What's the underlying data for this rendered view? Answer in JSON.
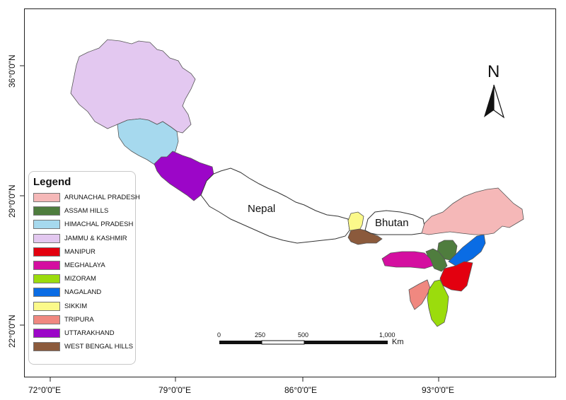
{
  "map": {
    "lat_labels": [
      "36°0'0\"N",
      "29°0'0\"N",
      "22°0'0\"N"
    ],
    "lon_labels": [
      "72°0'0\"E",
      "79°0'0\"E",
      "86°0'0\"E",
      "93°0'0\"E"
    ],
    "countries": [
      "Nepal",
      "Bhutan"
    ],
    "north_label": "N",
    "scale": {
      "ticks": [
        "0",
        "250",
        "500",
        "1,000"
      ],
      "unit": "Km"
    }
  },
  "legend": {
    "title": "Legend",
    "items": [
      {
        "label": "ARUNACHAL PRADESH",
        "color": "#f5b8b8"
      },
      {
        "label": "ASSAM HILLS",
        "color": "#4f7d3e"
      },
      {
        "label": "HIMACHAL PRADESH",
        "color": "#a6d9ee"
      },
      {
        "label": "JAMMU & KASHMIR",
        "color": "#e3c8f0"
      },
      {
        "label": "MANIPUR",
        "color": "#e3000f"
      },
      {
        "label": "MEGHALAYA",
        "color": "#d40fa0"
      },
      {
        "label": "MIZORAM",
        "color": "#9bdc0c"
      },
      {
        "label": "NAGALAND",
        "color": "#0a6ce4"
      },
      {
        "label": "SIKKIM",
        "color": "#fbf98a"
      },
      {
        "label": "TRIPURA",
        "color": "#f08880"
      },
      {
        "label": "UTTARAKHAND",
        "color": "#9c06c8"
      },
      {
        "label": "WEST BENGAL HILLS",
        "color": "#8b5a3c"
      }
    ]
  }
}
